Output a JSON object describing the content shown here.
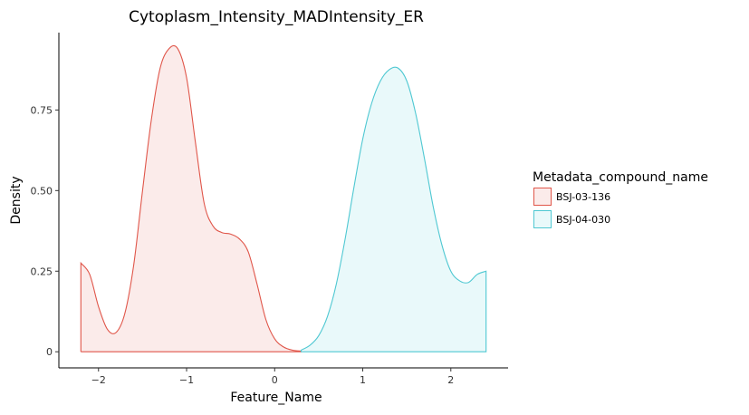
{
  "chart_data": {
    "type": "area",
    "title": "Cytoplasm_Intensity_MADIntensity_ER",
    "xlabel": "Feature_Name",
    "ylabel": "Density",
    "xlim": [
      -2.45,
      2.65
    ],
    "ylim": [
      -0.05,
      0.99
    ],
    "x_ticks": [
      {
        "value": -2,
        "label": "−2"
      },
      {
        "value": -1,
        "label": "−1"
      },
      {
        "value": 0,
        "label": "0"
      },
      {
        "value": 1,
        "label": "1"
      },
      {
        "value": 2,
        "label": "2"
      }
    ],
    "y_ticks": [
      {
        "value": 0,
        "label": "0"
      },
      {
        "value": 0.25,
        "label": "0.25"
      },
      {
        "value": 0.5,
        "label": "0.50"
      },
      {
        "value": 0.75,
        "label": "0.75"
      }
    ],
    "grid": false,
    "legend": {
      "title": "Metadata_compound_name",
      "placement": "right"
    },
    "series": [
      {
        "name": "BSJ-03-136",
        "color": "#E0564A",
        "fill": "#FBEBEA",
        "x": [
          -2.2,
          -2.1,
          -2.0,
          -1.9,
          -1.8,
          -1.7,
          -1.6,
          -1.5,
          -1.4,
          -1.3,
          -1.2,
          -1.1,
          -1.0,
          -0.9,
          -0.8,
          -0.7,
          -0.6,
          -0.5,
          -0.4,
          -0.3,
          -0.2,
          -0.1,
          0.0,
          0.1,
          0.2,
          0.3
        ],
        "y": [
          0.275,
          0.24,
          0.14,
          0.07,
          0.06,
          0.12,
          0.27,
          0.5,
          0.72,
          0.88,
          0.94,
          0.94,
          0.85,
          0.65,
          0.46,
          0.39,
          0.37,
          0.365,
          0.35,
          0.31,
          0.21,
          0.1,
          0.04,
          0.015,
          0.005,
          0.002
        ]
      },
      {
        "name": "BSJ-04-030",
        "color": "#4FC8D2",
        "fill": "#E9F9FA",
        "x": [
          0.3,
          0.4,
          0.5,
          0.6,
          0.7,
          0.8,
          0.9,
          1.0,
          1.1,
          1.2,
          1.3,
          1.4,
          1.5,
          1.6,
          1.7,
          1.8,
          1.9,
          2.0,
          2.1,
          2.2,
          2.3,
          2.4
        ],
        "y": [
          0.005,
          0.02,
          0.05,
          0.11,
          0.21,
          0.35,
          0.51,
          0.66,
          0.77,
          0.84,
          0.875,
          0.88,
          0.84,
          0.74,
          0.6,
          0.45,
          0.33,
          0.25,
          0.22,
          0.215,
          0.24,
          0.25
        ]
      }
    ]
  }
}
